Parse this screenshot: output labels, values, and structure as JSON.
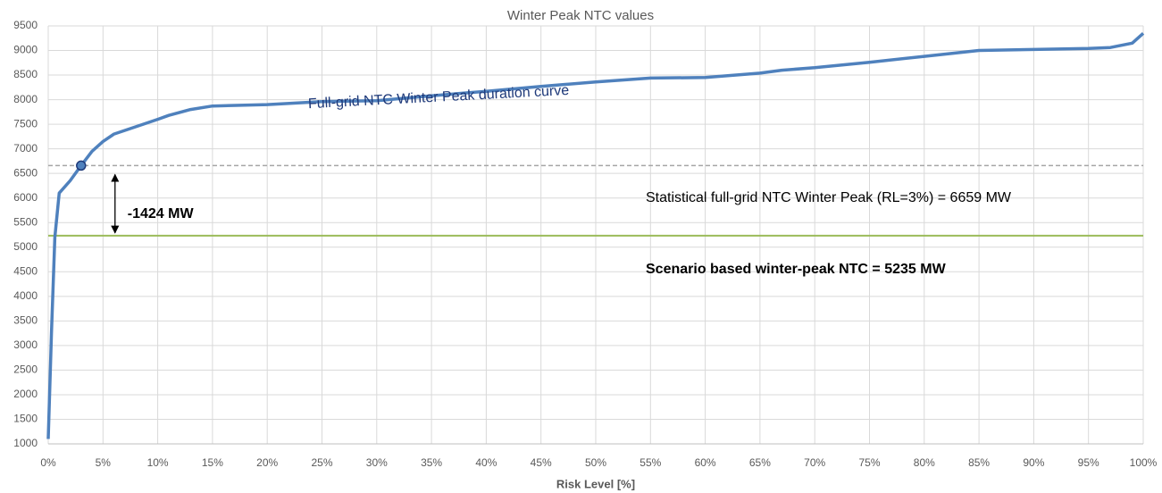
{
  "chart_data": {
    "type": "line",
    "title": "Winter Peak NTC values",
    "x_label": "Risk Level [%]",
    "x": [
      0,
      0.3,
      0.6,
      1,
      2,
      3,
      4,
      5,
      6,
      8,
      10,
      11,
      13,
      15,
      20,
      25,
      30,
      35,
      40,
      45,
      50,
      55,
      60,
      65,
      67,
      70,
      75,
      80,
      85,
      90,
      95,
      97,
      99,
      100
    ],
    "series": [
      {
        "name": "Full-grid NTC Winter Peak duration curve",
        "color": "#4f81bd",
        "values": [
          1100,
          3300,
          5200,
          6100,
          6350,
          6659,
          6950,
          7150,
          7300,
          7450,
          7600,
          7680,
          7800,
          7870,
          7900,
          7960,
          7980,
          8080,
          8170,
          8270,
          8360,
          8440,
          8450,
          8540,
          8600,
          8650,
          8760,
          8880,
          9000,
          9020,
          9040,
          9060,
          9150,
          9350
        ]
      }
    ],
    "marker": {
      "x": 3,
      "y": 6659
    },
    "reference_lines": [
      {
        "value": 6659,
        "label": "Statistical full-grid NTC Winter Peak (RL=3%) = 6659 MW",
        "color": "#a6a6a6",
        "style": "dashed"
      },
      {
        "value": 5235,
        "label": "Scenario based winter-peak NTC = 5235 MW",
        "color": "#9bbb59",
        "style": "solid"
      }
    ],
    "difference": {
      "value": -1424,
      "label": "-1424 MW",
      "x": 3
    },
    "xlim": [
      0,
      100
    ],
    "xticks": [
      {
        "value": 0,
        "label": "0%"
      },
      {
        "value": 5,
        "label": "5%"
      },
      {
        "value": 10,
        "label": "10%"
      },
      {
        "value": 15,
        "label": "15%"
      },
      {
        "value": 20,
        "label": "20%"
      },
      {
        "value": 25,
        "label": "25%"
      },
      {
        "value": 30,
        "label": "30%"
      },
      {
        "value": 35,
        "label": "35%"
      },
      {
        "value": 40,
        "label": "40%"
      },
      {
        "value": 45,
        "label": "45%"
      },
      {
        "value": 50,
        "label": "50%"
      },
      {
        "value": 55,
        "label": "55%"
      },
      {
        "value": 60,
        "label": "60%"
      },
      {
        "value": 65,
        "label": "65%"
      },
      {
        "value": 70,
        "label": "70%"
      },
      {
        "value": 75,
        "label": "75%"
      },
      {
        "value": 80,
        "label": "80%"
      },
      {
        "value": 85,
        "label": "85%"
      },
      {
        "value": 90,
        "label": "90%"
      },
      {
        "value": 95,
        "label": "95%"
      },
      {
        "value": 100,
        "label": "100%"
      }
    ],
    "ylim": [
      1000,
      9500
    ],
    "yticks": [
      1000,
      1500,
      2000,
      2500,
      3000,
      3500,
      4000,
      4500,
      5000,
      5500,
      6000,
      6500,
      7000,
      7500,
      8000,
      8500,
      9000,
      9500
    ],
    "grid": true
  }
}
